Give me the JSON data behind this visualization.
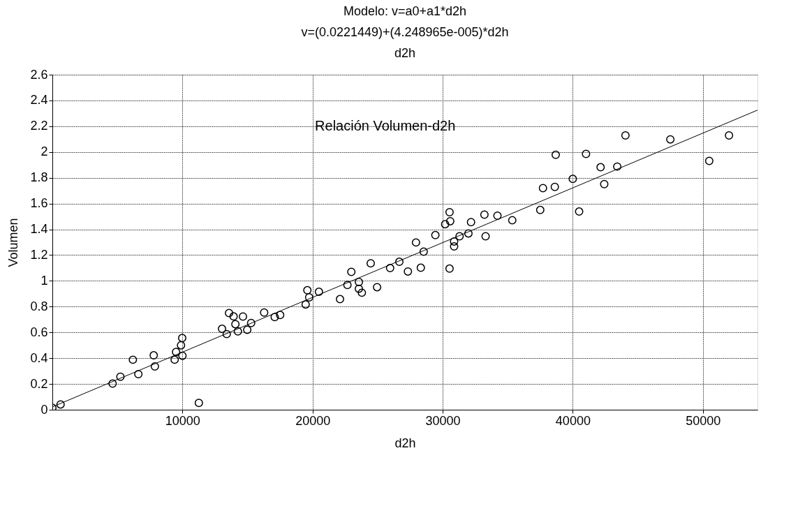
{
  "chart_data": {
    "type": "scatter",
    "title": [
      "Modelo: v=a0+a1*d2h",
      "v=(0.0221449)+(4.248965e-005)*d2h",
      "d2h"
    ],
    "xlabel": "d2h",
    "ylabel": "Volumen",
    "annotations": [
      "Relación Volumen-d2h"
    ],
    "xlim": [
      0,
      54200
    ],
    "xticks": [
      10000,
      20000,
      30000,
      40000,
      50000
    ],
    "ylim": [
      0,
      2.6
    ],
    "yticks": [
      0,
      0.2,
      0.4,
      0.6,
      0.8,
      1,
      1.2,
      1.4,
      1.6,
      1.8,
      2,
      2.2,
      2.4,
      2.6
    ],
    "grid": true,
    "series": [
      {
        "marker": "circle",
        "color": "#000000",
        "x": [
          0,
          630,
          4630,
          5230,
          6190,
          6610,
          7790,
          7880,
          9400,
          9510,
          9890,
          9980,
          10000,
          11260,
          13040,
          13400,
          13580,
          13930,
          14070,
          14260,
          14650,
          14980,
          15280,
          16280,
          17090,
          17510,
          19470,
          19600,
          19740,
          20490,
          22110,
          22680,
          22980,
          23560,
          23560,
          23790,
          24470,
          24960,
          25960,
          26670,
          27330,
          27950,
          28320,
          28540,
          29440,
          30190,
          30530,
          30580,
          30530,
          30880,
          30880,
          31300,
          31980,
          32180,
          33210,
          33300,
          34210,
          35350,
          37500,
          37710,
          38620,
          38690,
          40000,
          40490,
          41020,
          42140,
          42420,
          43420,
          44050,
          47500,
          50490,
          52010
        ],
        "values": [
          0.015,
          0.041,
          0.203,
          0.256,
          0.388,
          0.276,
          0.422,
          0.336,
          0.388,
          0.448,
          0.5,
          0.556,
          0.419,
          0.053,
          0.628,
          0.587,
          0.75,
          0.724,
          0.664,
          0.608,
          0.723,
          0.62,
          0.673,
          0.754,
          0.719,
          0.735,
          0.817,
          0.927,
          0.872,
          0.915,
          0.858,
          0.968,
          1.07,
          0.991,
          0.939,
          0.908,
          1.136,
          0.951,
          1.099,
          1.148,
          1.073,
          1.298,
          1.102,
          1.227,
          1.355,
          1.44,
          1.533,
          1.463,
          1.095,
          1.306,
          1.267,
          1.346,
          1.368,
          1.456,
          1.514,
          1.346,
          1.506,
          1.47,
          1.55,
          1.72,
          1.729,
          1.978,
          1.791,
          1.538,
          1.985,
          1.882,
          1.751,
          1.887,
          2.129,
          2.098,
          1.931,
          2.129
        ]
      },
      {
        "type": "line",
        "line_style": "solid",
        "color": "#000000",
        "x": [
          0,
          54200
        ],
        "values": [
          0.022,
          2.325
        ]
      }
    ]
  }
}
